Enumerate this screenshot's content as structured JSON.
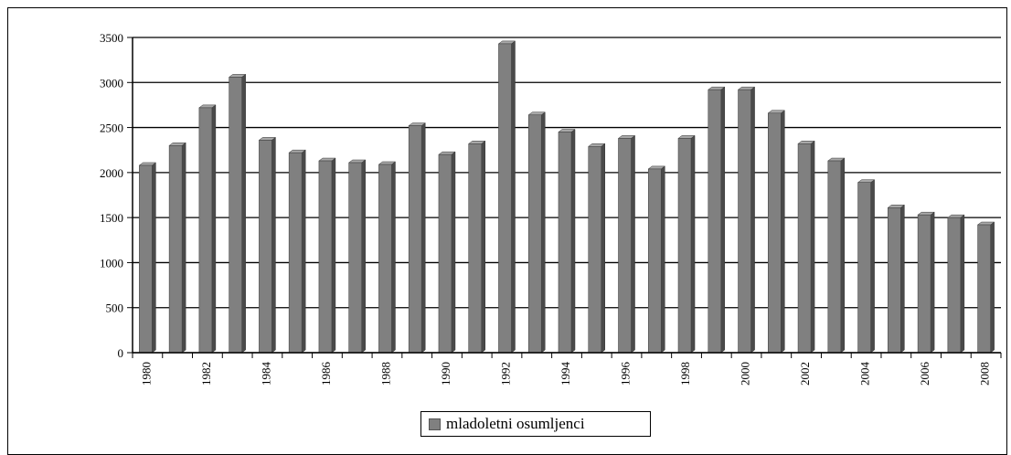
{
  "chart_data": {
    "type": "bar",
    "title": "",
    "xlabel": "",
    "ylabel": "",
    "ylim": [
      0,
      3500
    ],
    "yticks": [
      0,
      500,
      1000,
      1500,
      2000,
      2500,
      3000,
      3500
    ],
    "categories": [
      "1980",
      "1981",
      "1982",
      "1983",
      "1984",
      "1985",
      "1986",
      "1987",
      "1988",
      "1989",
      "1990",
      "1991",
      "1992",
      "1993",
      "1994",
      "1995",
      "1996",
      "1997",
      "1998",
      "1999",
      "2000",
      "2001",
      "2002",
      "2003",
      "2004",
      "2005",
      "2006",
      "2007",
      "2008"
    ],
    "xtick_labels": [
      "1980",
      "",
      "1982",
      "",
      "1984",
      "",
      "1986",
      "",
      "1988",
      "",
      "1990",
      "",
      "1992",
      "",
      "1994",
      "",
      "1996",
      "",
      "1998",
      "",
      "2000",
      "",
      "2002",
      "",
      "2004",
      "",
      "2006",
      "",
      "2008"
    ],
    "series": [
      {
        "name": "mladoletni osumljenci",
        "color": "#808080",
        "values": [
          2080,
          2300,
          2720,
          3060,
          2360,
          2220,
          2130,
          2110,
          2090,
          2520,
          2200,
          2320,
          3430,
          2640,
          2450,
          2290,
          2380,
          2040,
          2380,
          2920,
          2920,
          2660,
          2320,
          2130,
          1890,
          1610,
          1530,
          1500,
          1420
        ]
      }
    ],
    "grid": true,
    "legend_position": "bottom-center"
  },
  "legend": {
    "label": "mladoletni osumljenci"
  }
}
